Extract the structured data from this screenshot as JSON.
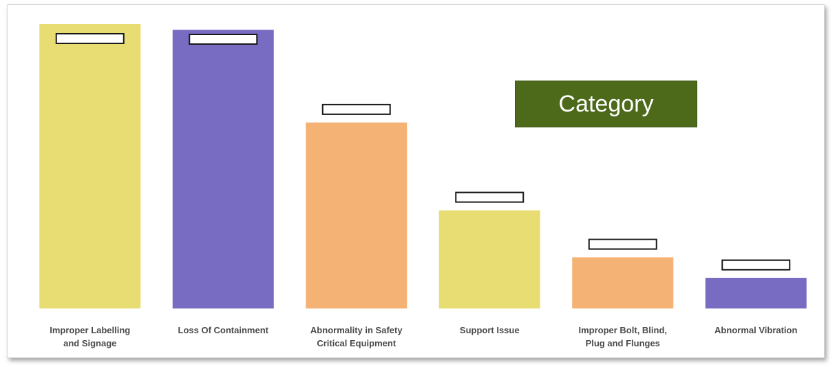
{
  "legend": {
    "title": "Category"
  },
  "chart_data": {
    "type": "bar",
    "title": "",
    "xlabel": "",
    "ylabel": "",
    "categories": [
      [
        "Improper Labelling",
        "and Signage"
      ],
      [
        "Loss Of Containment"
      ],
      [
        "Abnormality in Safety",
        "Critical Equipment"
      ],
      [
        "Support Issue"
      ],
      [
        "Improper Bolt, Blind,",
        "Plug and Flunges"
      ],
      [
        "Abnormal Vibration"
      ]
    ],
    "values": [
      1000,
      980,
      654,
      345,
      180,
      107
    ],
    "colors": [
      "#e8dd72",
      "#776bc2",
      "#f5b275",
      "#e8dd72",
      "#f5b275",
      "#776bc2"
    ],
    "ylim": [
      0,
      1000
    ],
    "grid": false,
    "data_labels_masked": true
  }
}
